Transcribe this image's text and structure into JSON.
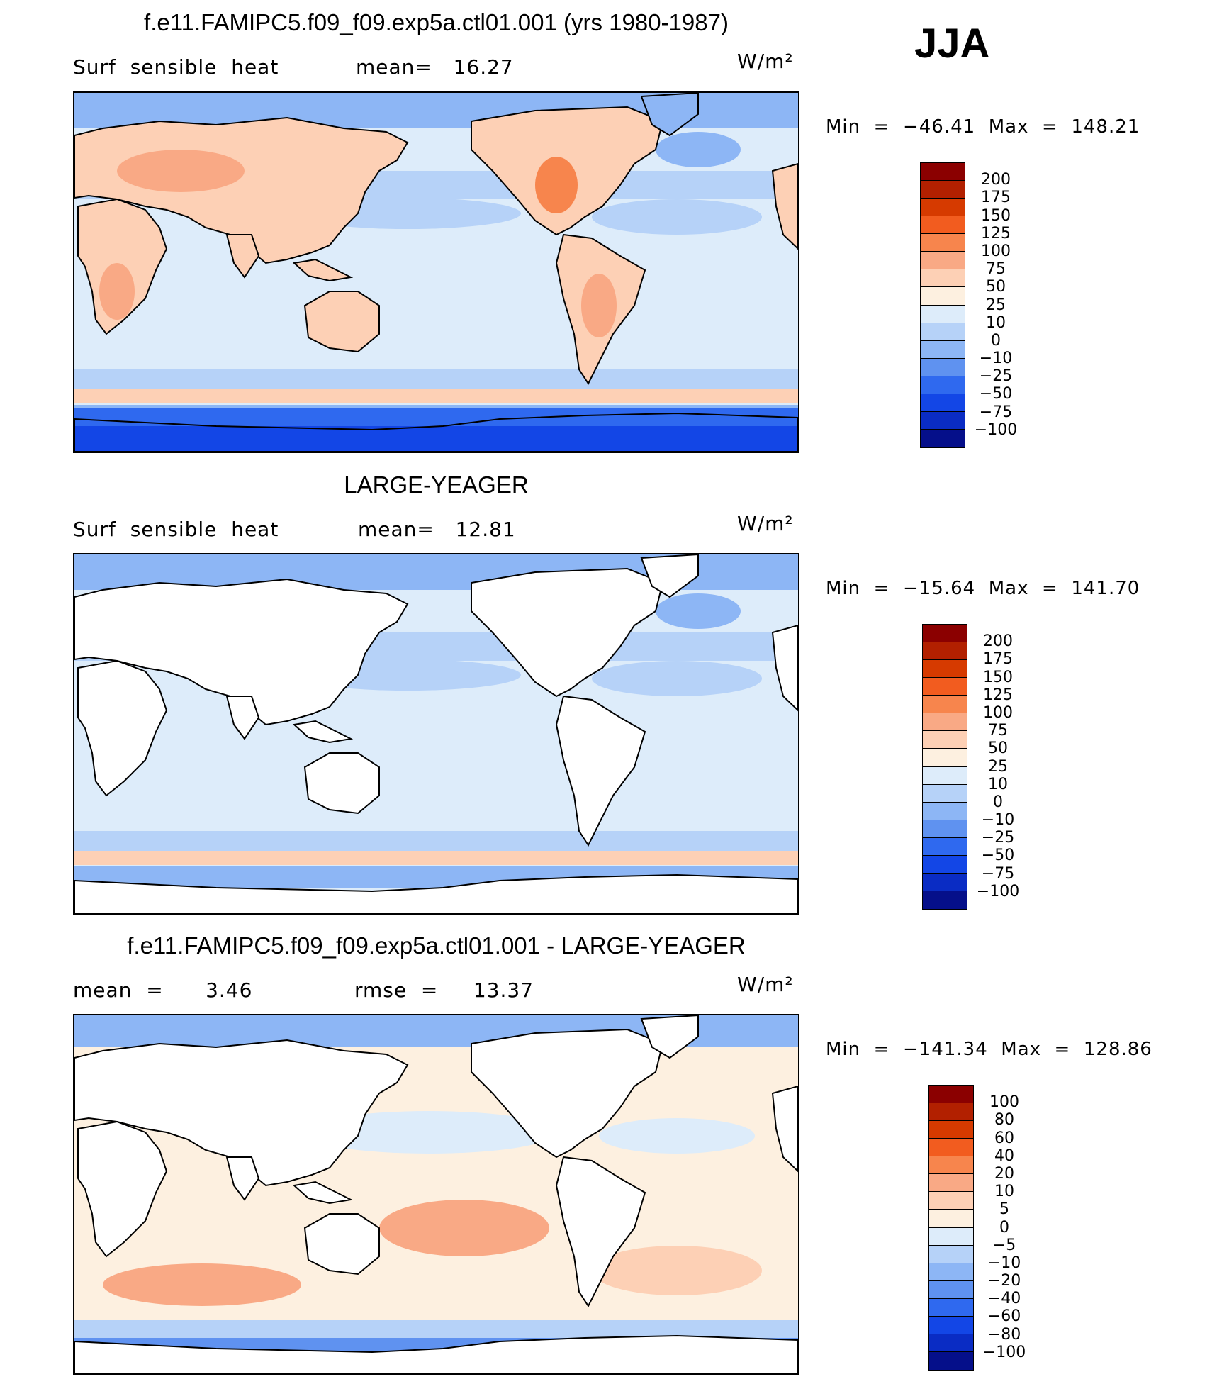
{
  "season": "JJA",
  "colorbar_colors": [
    "#8b0000",
    "#b22000",
    "#d63a00",
    "#f25c1f",
    "#f7854d",
    "#f9a985",
    "#fdd0b5",
    "#fdf0e0",
    "#ddecfa",
    "#b6d2f8",
    "#8db6f5",
    "#5f92f0",
    "#2f69ef",
    "#1346e6",
    "#0a2cc4",
    "#050f8a"
  ],
  "land_color": "#fdf0e0",
  "panels": [
    {
      "title": "f.e11.FAMIPC5.f09_f09.exp5a.ctl01.001 (yrs 1980-1987)",
      "left_label": "Surf  sensible  heat",
      "mid_label": "mean=   16.27",
      "units": "W/m²",
      "min_max": "Min  =  −46.41  Max  =  148.21",
      "colorbar_labels": [
        "200",
        "175",
        "150",
        "125",
        "100",
        "75",
        "50",
        "25",
        "10",
        "0",
        "−10",
        "−25",
        "−50",
        "−75",
        "−100"
      ]
    },
    {
      "title": "LARGE-YEAGER",
      "left_label": "Surf  sensible  heat",
      "mid_label": "mean=   12.81",
      "units": "W/m²",
      "min_max": "Min  =  −15.64  Max  =  141.70",
      "colorbar_labels": [
        "200",
        "175",
        "150",
        "125",
        "100",
        "75",
        "50",
        "25",
        "10",
        "0",
        "−10",
        "−25",
        "−50",
        "−75",
        "−100"
      ]
    },
    {
      "title": "f.e11.FAMIPC5.f09_f09.exp5a.ctl01.001 - LARGE-YEAGER",
      "left_label": "mean  =      3.46",
      "mid_label": "rmse  =     13.37",
      "units": "W/m²",
      "min_max": "Min  =  −141.34  Max  =  128.86",
      "colorbar_labels": [
        "100",
        "80",
        "60",
        "40",
        "20",
        "10",
        "5",
        "0",
        "−5",
        "−10",
        "−20",
        "−40",
        "−60",
        "−80",
        "−100"
      ]
    }
  ],
  "chart_data": [
    {
      "type": "heatmap",
      "title": "f.e11.FAMIPC5.f09_f09.exp5a.ctl01.001 (yrs 1980-1987)",
      "variable": "Surf sensible heat",
      "units": "W/m²",
      "season": "JJA",
      "mean": 16.27,
      "min": -46.41,
      "max": 148.21,
      "levels": [
        -100,
        -75,
        -50,
        -25,
        -10,
        0,
        10,
        25,
        50,
        75,
        100,
        125,
        150,
        175,
        200
      ],
      "projection": "cylindrical equidistant, Pacific-centered"
    },
    {
      "type": "heatmap",
      "title": "LARGE-YEAGER",
      "variable": "Surf sensible heat",
      "units": "W/m²",
      "season": "JJA",
      "mean": 12.81,
      "min": -15.64,
      "max": 141.7,
      "levels": [
        -100,
        -75,
        -50,
        -25,
        -10,
        0,
        10,
        25,
        50,
        75,
        100,
        125,
        150,
        175,
        200
      ],
      "land_masked": true
    },
    {
      "type": "heatmap",
      "title": "f.e11.FAMIPC5.f09_f09.exp5a.ctl01.001 - LARGE-YEAGER",
      "units": "W/m²",
      "season": "JJA",
      "mean": 3.46,
      "rmse": 13.37,
      "min": -141.34,
      "max": 128.86,
      "levels": [
        -100,
        -80,
        -60,
        -40,
        -20,
        -10,
        -5,
        0,
        5,
        10,
        20,
        40,
        60,
        80,
        100
      ],
      "land_masked": true
    }
  ]
}
